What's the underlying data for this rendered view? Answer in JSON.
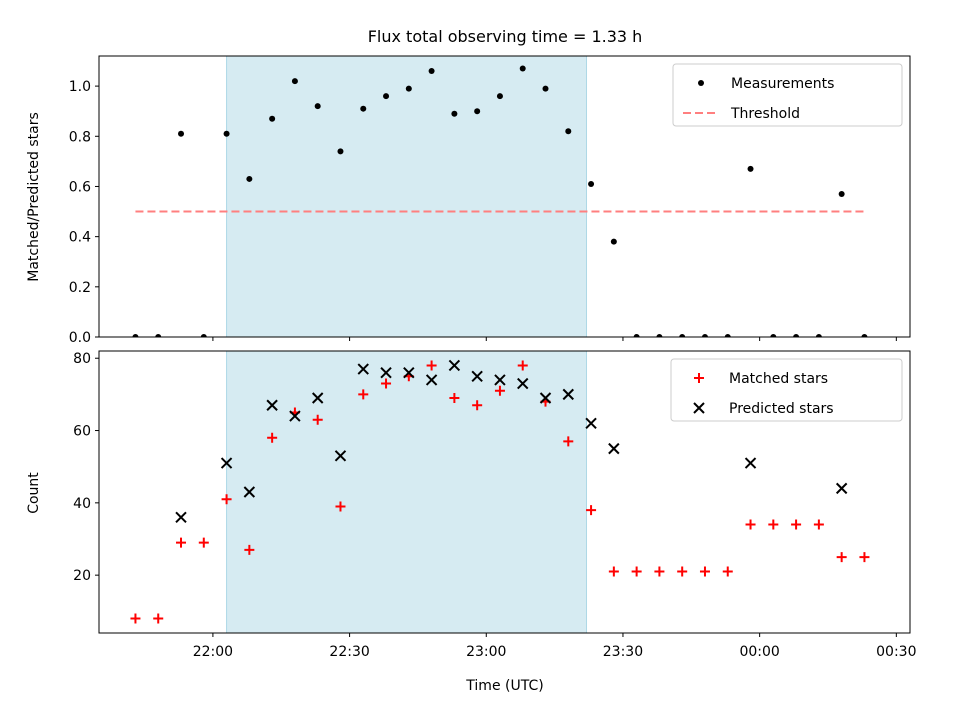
{
  "chart_data": [
    {
      "type": "scatter",
      "title": "Flux total observing time = 1.33 h",
      "xlabel": "",
      "ylabel": "Matched/Predicted stars",
      "xlim": [
        "21:35",
        "00:33"
      ],
      "ylim": [
        0,
        1.12
      ],
      "yticks": [
        0.0,
        0.2,
        0.4,
        0.6,
        0.8,
        1.0
      ],
      "ytick_labels": [
        "0.0",
        "0.2",
        "0.4",
        "0.6",
        "0.8",
        "1.0"
      ],
      "shaded_span": [
        "22:03",
        "23:22"
      ],
      "legend_position": "top-right",
      "series": [
        {
          "name": "Measurements",
          "marker": "dot",
          "color": "#000000",
          "x": [
            "21:43",
            "21:48",
            "21:53",
            "21:58",
            "22:03",
            "22:08",
            "22:13",
            "22:18",
            "22:23",
            "22:28",
            "22:33",
            "22:38",
            "22:43",
            "22:48",
            "22:53",
            "22:58",
            "23:03",
            "23:08",
            "23:13",
            "23:18",
            "23:23",
            "23:28",
            "23:33",
            "23:38",
            "23:43",
            "23:48",
            "23:53",
            "23:58",
            "00:03",
            "00:08",
            "00:13",
            "00:18",
            "00:23"
          ],
          "y": [
            0.0,
            0.0,
            0.81,
            0.0,
            0.81,
            0.63,
            0.87,
            1.02,
            0.92,
            0.74,
            0.91,
            0.96,
            0.99,
            1.06,
            0.89,
            0.9,
            0.96,
            1.07,
            0.99,
            0.82,
            0.61,
            0.38,
            0.0,
            0.0,
            0.0,
            0.0,
            0.0,
            0.67,
            0.0,
            0.0,
            0.0,
            0.57,
            0.0
          ]
        },
        {
          "name": "Threshold",
          "style": "dashed",
          "color": "#ff7f7f",
          "x": [
            "21:43",
            "00:23"
          ],
          "y": [
            0.5,
            0.5
          ]
        }
      ]
    },
    {
      "type": "scatter",
      "title": "",
      "xlabel": "Time (UTC)",
      "ylabel": "Count",
      "xlim": [
        "21:35",
        "00:33"
      ],
      "ylim": [
        4,
        82
      ],
      "xtick_labels": [
        "22:00",
        "22:30",
        "23:00",
        "23:30",
        "00:00",
        "00:30"
      ],
      "yticks": [
        20,
        40,
        60,
        80
      ],
      "ytick_labels": [
        "20",
        "40",
        "60",
        "80"
      ],
      "shaded_span": [
        "22:03",
        "23:22"
      ],
      "legend_position": "top-right",
      "series": [
        {
          "name": "Matched stars",
          "marker": "plus",
          "color": "#ff0000",
          "x": [
            "21:43",
            "21:48",
            "21:53",
            "21:58",
            "22:03",
            "22:08",
            "22:13",
            "22:18",
            "22:23",
            "22:28",
            "22:33",
            "22:38",
            "22:43",
            "22:48",
            "22:53",
            "22:58",
            "23:03",
            "23:08",
            "23:13",
            "23:18",
            "23:23",
            "23:28",
            "23:33",
            "23:38",
            "23:43",
            "23:48",
            "23:53",
            "23:58",
            "00:03",
            "00:08",
            "00:13",
            "00:18",
            "00:23"
          ],
          "y": [
            8,
            8,
            29,
            29,
            41,
            27,
            58,
            65,
            63,
            39,
            70,
            73,
            75,
            78,
            69,
            67,
            71,
            78,
            68,
            57,
            38,
            21,
            21,
            21,
            21,
            21,
            21,
            34,
            34,
            34,
            34,
            25,
            25
          ]
        },
        {
          "name": "Predicted stars",
          "marker": "x",
          "color": "#000000",
          "x": [
            "21:53",
            "22:03",
            "22:08",
            "22:13",
            "22:18",
            "22:23",
            "22:28",
            "22:33",
            "22:38",
            "22:43",
            "22:48",
            "22:53",
            "22:58",
            "23:03",
            "23:08",
            "23:13",
            "23:18",
            "23:23",
            "23:28",
            "23:58",
            "00:18"
          ],
          "y": [
            36,
            51,
            43,
            67,
            64,
            69,
            53,
            77,
            76,
            76,
            74,
            78,
            75,
            74,
            73,
            69,
            70,
            62,
            55,
            51,
            44
          ]
        }
      ]
    }
  ]
}
